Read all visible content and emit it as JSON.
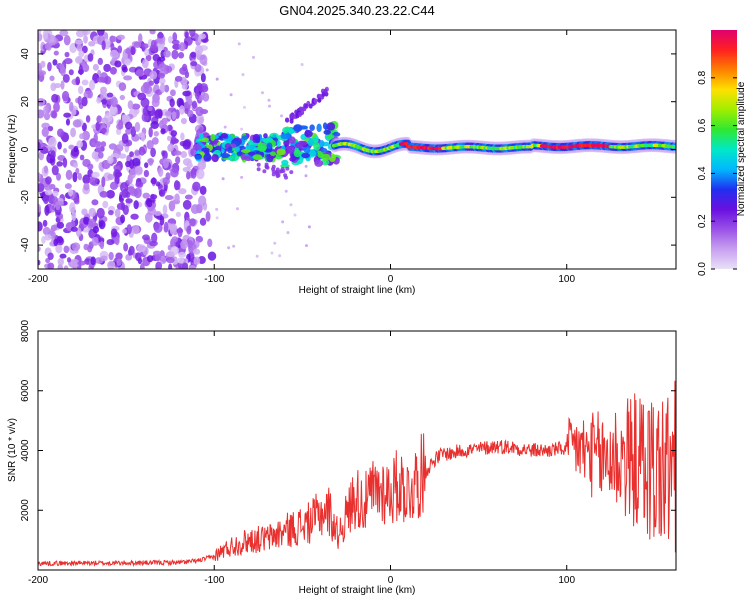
{
  "title": "GN04.2025.340.23.22.C44",
  "colors": {
    "snr_line": "#e8312f",
    "axis": "#000000",
    "background": "#ffffff"
  },
  "chart_data": [
    {
      "type": "heatmap",
      "name": "spectrogram",
      "xlabel": "Height of straight line (km)",
      "ylabel": "Frequency (Hz)",
      "xlim": [
        -200,
        162
      ],
      "ylim": [
        -50,
        50
      ],
      "xticks": [
        -200,
        -100,
        0,
        100
      ],
      "yticks": [
        -40,
        -20,
        0,
        20,
        40
      ],
      "colorbar": {
        "label": "Normalized spectral amplitude",
        "range": [
          0,
          1
        ],
        "ticks": [
          "0.0",
          "0.2",
          "0.4",
          "0.6",
          "0.8"
        ],
        "tick_values": [
          0.0,
          0.2,
          0.4,
          0.6,
          0.8
        ],
        "colormap": [
          "#e8e0f8",
          "#c8a0f0",
          "#9a50e8",
          "#6a10e0",
          "#2030f0",
          "#00b8ff",
          "#00e8c8",
          "#30e830",
          "#a0ee00",
          "#ffe000",
          "#ff8000",
          "#ff2020",
          "#e00070"
        ]
      },
      "description_regions": [
        {
          "region": "noise",
          "x": [
            -200,
            -105
          ],
          "f": [
            -50,
            50
          ],
          "amplitude": [
            0.05,
            0.25
          ]
        },
        {
          "region": "onset",
          "x": [
            -110,
            -30
          ],
          "f": [
            -6,
            10
          ],
          "amplitude": [
            0.2,
            0.6
          ]
        },
        {
          "region": "harmonic",
          "x": [
            -60,
            -35
          ],
          "f": [
            10,
            26
          ],
          "amplitude": [
            0.15,
            0.25
          ]
        },
        {
          "region": "main_line",
          "x": [
            -30,
            162
          ],
          "f": [
            -2,
            4
          ],
          "amplitude": [
            0.5,
            1.0
          ]
        }
      ]
    },
    {
      "type": "line",
      "name": "snr",
      "xlabel": "Height of straight line (km)",
      "ylabel": "SNR (10 * v/v)",
      "xlim": [
        -200,
        162
      ],
      "ylim": [
        0,
        8000
      ],
      "xticks": [
        -200,
        -100,
        0,
        100
      ],
      "yticks": [
        2000,
        4000,
        6000,
        8000
      ],
      "series": [
        {
          "name": "SNR",
          "color": "#e8312f",
          "x": [
            -200,
            -180,
            -160,
            -140,
            -120,
            -110,
            -100,
            -95,
            -90,
            -80,
            -70,
            -60,
            -50,
            -45,
            -40,
            -35,
            -30,
            -25,
            -20,
            -15,
            -10,
            -5,
            0,
            5,
            10,
            15,
            20,
            25,
            30,
            35,
            40,
            50,
            60,
            70,
            80,
            90,
            95,
            100,
            105,
            110,
            115,
            120,
            125,
            130,
            135,
            140,
            145,
            150,
            155,
            160
          ],
          "values": [
            220,
            230,
            230,
            240,
            250,
            300,
            450,
            650,
            800,
            1000,
            1050,
            1300,
            1500,
            1600,
            1900,
            2000,
            1200,
            1800,
            2500,
            2200,
            2600,
            2700,
            2600,
            2900,
            2600,
            3000,
            3300,
            3700,
            3900,
            3900,
            4000,
            4050,
            4150,
            4100,
            4000,
            4000,
            4050,
            4050,
            4150,
            3950,
            3850,
            3700,
            3800,
            3750,
            3700,
            3650,
            3500,
            3350,
            3300,
            3300
          ]
        }
      ]
    }
  ]
}
